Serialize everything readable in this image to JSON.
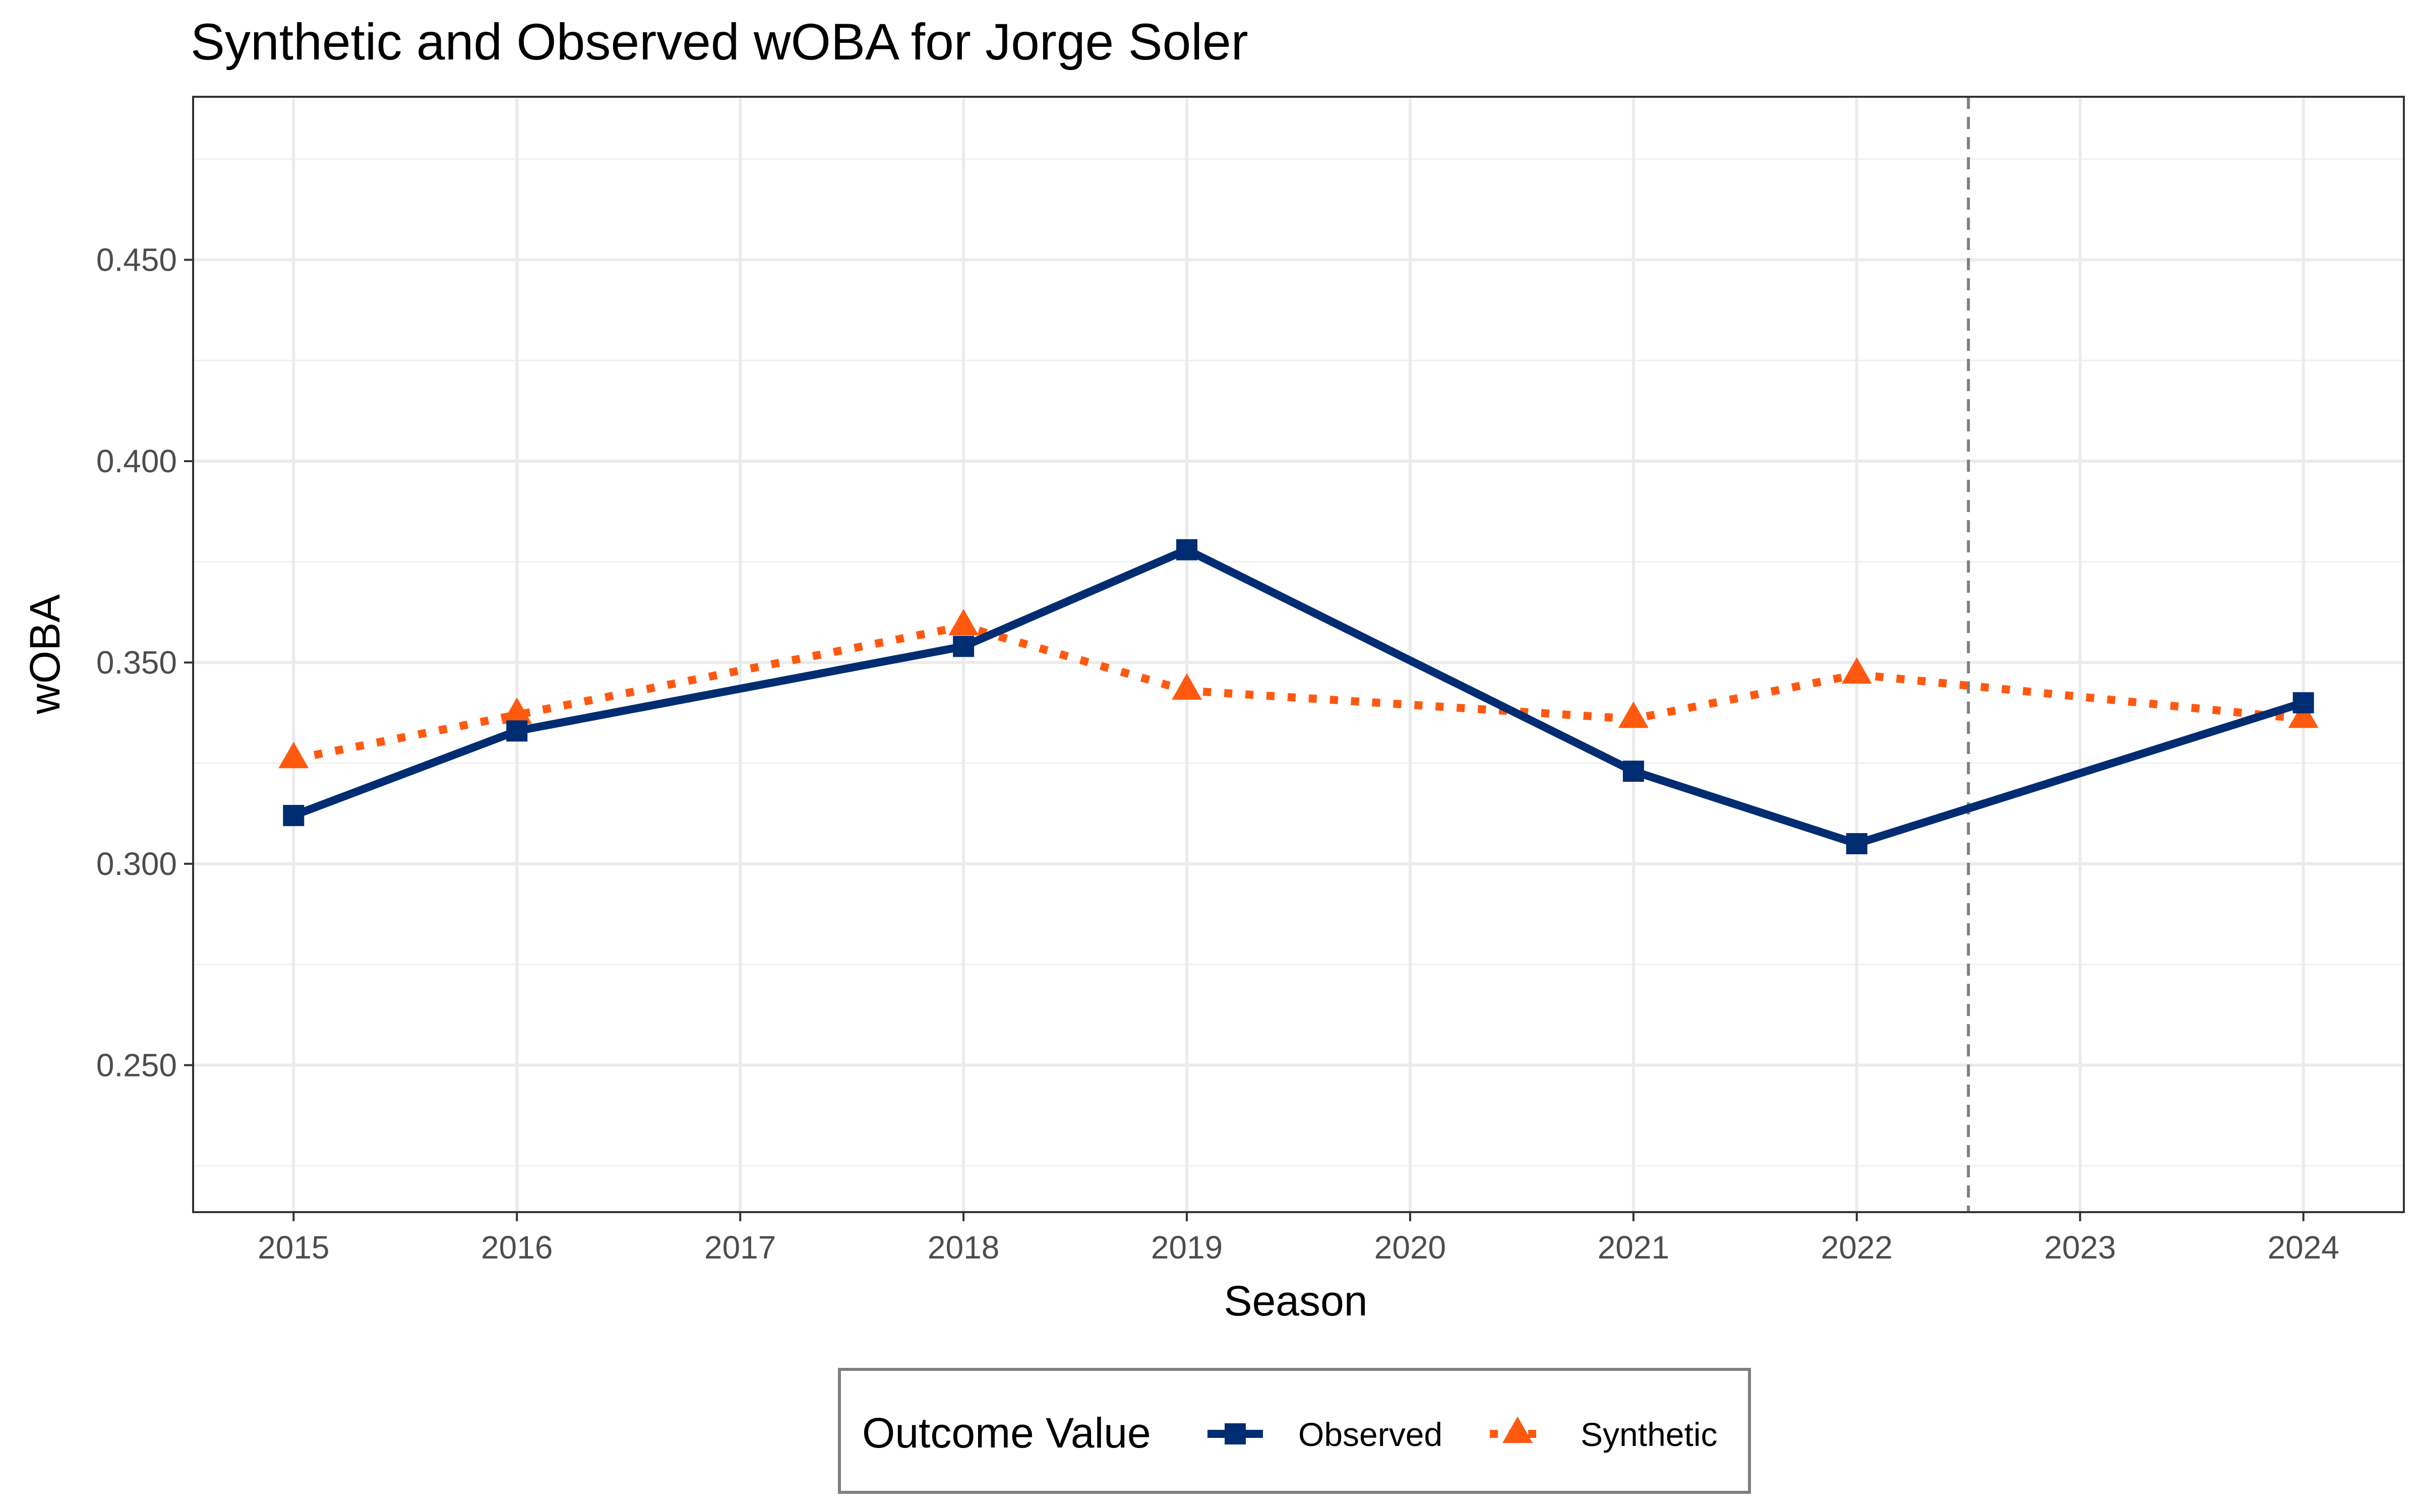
{
  "chart_data": {
    "type": "line",
    "title": "Synthetic and Observed wOBA for Jorge Soler",
    "xlabel": "Season",
    "ylabel": "wOBA",
    "x": [
      2015,
      2016,
      2018,
      2019,
      2021,
      2022,
      2024
    ],
    "x_ticks": [
      "2015",
      "2016",
      "2017",
      "2018",
      "2019",
      "2020",
      "2021",
      "2022",
      "2023",
      "2024"
    ],
    "xlim": [
      2014.55,
      2024.45
    ],
    "y_ticks": [
      "0.250",
      "0.300",
      "0.350",
      "0.400",
      "0.450"
    ],
    "ylim": [
      0.2135,
      0.4905
    ],
    "grid": true,
    "reference_line": {
      "x": 2022.5,
      "style": "dashed",
      "color": "#7f7f7f"
    },
    "series": [
      {
        "name": "Observed",
        "color": "#002D72",
        "line_style": "solid",
        "marker": "square",
        "values": [
          0.312,
          0.333,
          0.354,
          0.378,
          0.323,
          0.305,
          0.34
        ]
      },
      {
        "name": "Synthetic",
        "color": "#FF5910",
        "line_style": "dotted",
        "marker": "triangle",
        "values": [
          0.326,
          0.337,
          0.359,
          0.343,
          0.336,
          0.347,
          0.336
        ]
      }
    ],
    "legend": {
      "title": "Outcome Value",
      "position": "bottom",
      "entries": [
        "Observed",
        "Synthetic"
      ]
    }
  }
}
